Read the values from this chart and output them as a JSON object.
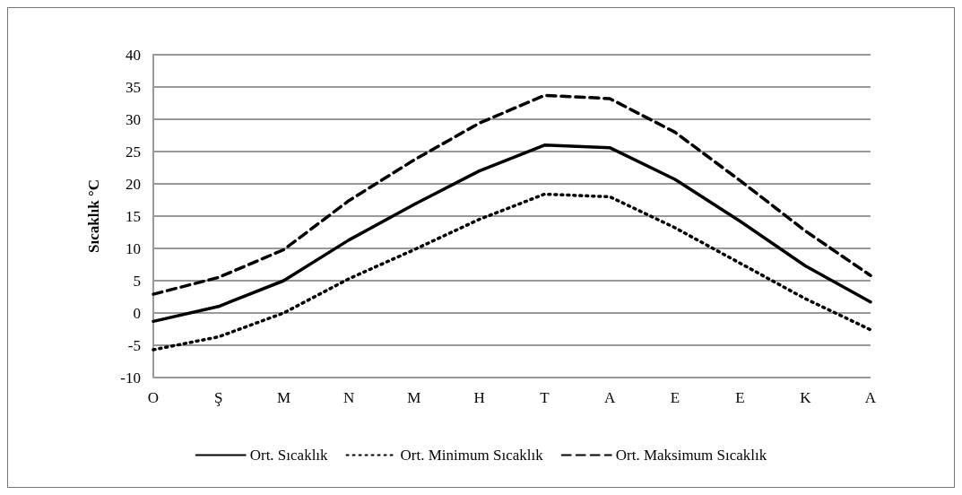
{
  "chart_data": {
    "type": "line",
    "ylabel": "Sıcaklık °C",
    "categories": [
      "O",
      "Ş",
      "M",
      "N",
      "M",
      "H",
      "T",
      "A",
      "E",
      "E",
      "K",
      "A"
    ],
    "series": [
      {
        "name": "Ort. Sıcaklık",
        "color": "#000000",
        "line_style": "solid",
        "values": [
          -1.3,
          1.0,
          5.0,
          11.3,
          16.8,
          22.0,
          26.0,
          25.6,
          20.7,
          14.2,
          7.3,
          1.7
        ]
      },
      {
        "name": "Ort. Minimum Sıcaklık",
        "color": "#000000",
        "line_style": "dotted",
        "values": [
          -5.7,
          -3.7,
          0.0,
          5.3,
          9.8,
          14.5,
          18.4,
          18.0,
          13.2,
          7.7,
          2.2,
          -2.6
        ]
      },
      {
        "name": "Ort. Maksimum Sıcaklık",
        "color": "#000000",
        "line_style": "dashed",
        "values": [
          2.9,
          5.5,
          9.8,
          17.4,
          23.7,
          29.4,
          33.7,
          33.2,
          28.0,
          20.5,
          12.7,
          5.8
        ]
      }
    ],
    "ylim": [
      -10,
      40
    ],
    "yticks": [
      -10,
      -5,
      0,
      5,
      10,
      15,
      20,
      25,
      30,
      35,
      40
    ],
    "grid": "y",
    "legend": "bottom",
    "marker": "none"
  }
}
